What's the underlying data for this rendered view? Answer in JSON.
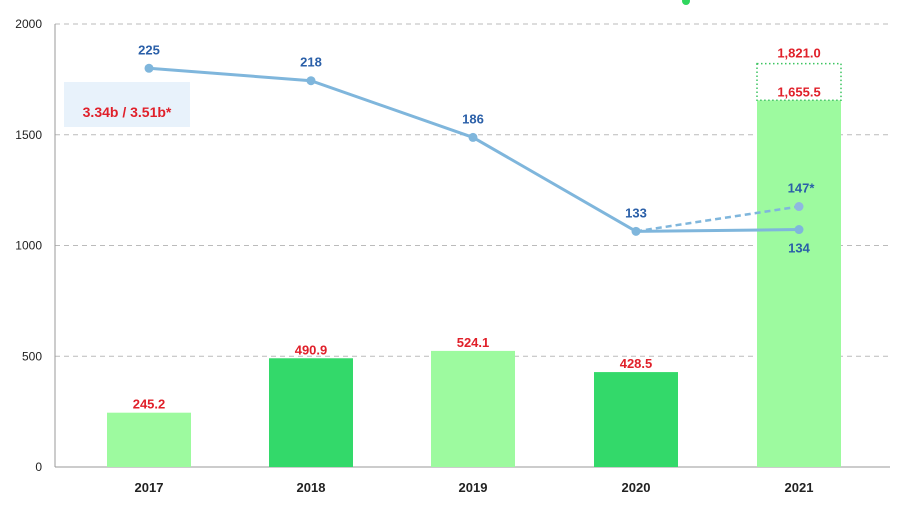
{
  "chart_data": {
    "type": "bar",
    "title": "",
    "xlabel": "",
    "ylabel": "",
    "ylim": [
      0,
      2000
    ],
    "yticks": [
      "0",
      "500",
      "1000",
      "1500",
      "2000"
    ],
    "grid": true,
    "categories": [
      "2017",
      "2018",
      "2019",
      "2020",
      "2021"
    ],
    "bars": {
      "values": [
        245.2,
        490.9,
        524.1,
        428.5,
        1655.5
      ],
      "labels": [
        "245.2",
        "490.9",
        "524.1",
        "428.5",
        "1,655.5"
      ],
      "colors": [
        "#9dfa9f",
        "#33d96a",
        "#9dfa9f",
        "#33d96a",
        "#9dfa9f"
      ],
      "projected_2021": 1821.0,
      "projected_2021_label": "1,821.0"
    },
    "line": {
      "type": "line",
      "secondary_ylim": [
        0,
        250
      ],
      "values": [
        225,
        218,
        186,
        133,
        134
      ],
      "labels": [
        "225",
        "218",
        "186",
        "133",
        "134"
      ],
      "color": "#7fb6dc",
      "projected": {
        "from_category": "2020",
        "to_category": "2021",
        "from_value": 133,
        "value": 147,
        "label": "147*"
      }
    },
    "annotation": "3.34b / 3.51b*"
  }
}
